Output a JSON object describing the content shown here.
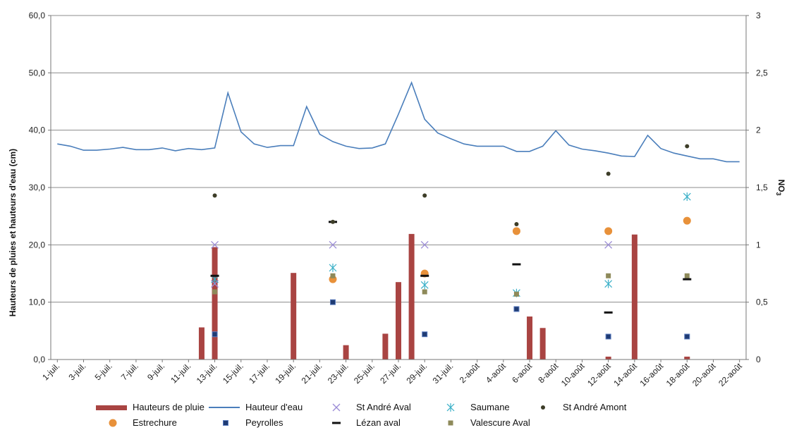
{
  "chart_data": {
    "type": "bar+line+scatter",
    "x_dates": [
      "1-juil.",
      "2-juil.",
      "3-juil.",
      "4-juil.",
      "5-juil.",
      "6-juil.",
      "7-juil.",
      "8-juil.",
      "9-juil.",
      "10-juil.",
      "11-juil.",
      "12-juil.",
      "13-juil.",
      "14-juil.",
      "15-juil.",
      "16-juil.",
      "17-juil.",
      "18-juil.",
      "19-juil.",
      "20-juil.",
      "21-juil.",
      "22-juil.",
      "23-juil.",
      "24-juil.",
      "25-juil.",
      "26-juil.",
      "27-juil.",
      "28-juil.",
      "29-juil.",
      "30-juil.",
      "31-juil.",
      "1-août",
      "2-août",
      "3-août",
      "4-août",
      "5-août",
      "6-août",
      "7-août",
      "8-août",
      "9-août",
      "10-août",
      "11-août",
      "12-août",
      "13-août",
      "14-août",
      "15-août",
      "16-août",
      "17-août",
      "18-août",
      "19-août",
      "20-août",
      "21-août",
      "22-août"
    ],
    "x_tick_labels": [
      "1-juil.",
      "3-juil.",
      "5-juil.",
      "7-juil.",
      "9-juil.",
      "11-juil.",
      "13-juil.",
      "15-juil.",
      "17-juil.",
      "19-juil.",
      "21-juil.",
      "23-juil.",
      "25-juil.",
      "27-juil.",
      "29-juil.",
      "31-juil.",
      "2-août",
      "4-août",
      "6-août",
      "8-août",
      "10-août",
      "12-août",
      "14-août",
      "16-août",
      "18-août",
      "20-août",
      "22-août"
    ],
    "y_left": {
      "label": "Hauteurs de pluies et hauteurs d'eau (cm)",
      "min": 0,
      "max": 60,
      "ticks": [
        "0,0",
        "10,0",
        "20,0",
        "30,0",
        "40,0",
        "50,0",
        "60,0"
      ]
    },
    "y_right": {
      "label_main": "NO",
      "label_sub": "3",
      "min": 0,
      "max": 3,
      "ticks": [
        "0",
        "0,5",
        "1",
        "1,5",
        "2",
        "2,5",
        "3"
      ]
    },
    "grid": "horizontal",
    "legend_position": "bottom",
    "colors": {
      "rain": "#a94442",
      "water": "#4a7ebb",
      "st_andre_aval": "#9b8cd6",
      "saumane": "#3ab0c8",
      "st_andre_amont": "#3d3d28",
      "estrechure": "#e8913a",
      "peyrolles": "#1f3b73",
      "lezan_aval": "#111111",
      "valescure_aval": "#8e8a5a"
    },
    "series": [
      {
        "key": "rain",
        "name": "Hauteurs de pluie",
        "kind": "bar",
        "axis": "left",
        "points": [
          [
            "12-juil.",
            5.6
          ],
          [
            "13-juil.",
            19.6
          ],
          [
            "19-juil.",
            15.1
          ],
          [
            "23-juil.",
            2.5
          ],
          [
            "26-juil.",
            4.5
          ],
          [
            "27-juil.",
            13.5
          ],
          [
            "28-juil.",
            21.9
          ],
          [
            "6-août",
            7.5
          ],
          [
            "7-août",
            5.5
          ],
          [
            "12-août",
            0.5
          ],
          [
            "14-août",
            21.8
          ],
          [
            "18-août",
            0.5
          ]
        ]
      },
      {
        "key": "water",
        "name": "Hauteur d'eau",
        "kind": "line",
        "axis": "left",
        "values": [
          37.6,
          37.2,
          36.5,
          36.5,
          36.7,
          37.0,
          36.6,
          36.6,
          36.9,
          36.4,
          36.8,
          36.6,
          36.9,
          46.5,
          39.7,
          37.6,
          37.0,
          37.3,
          37.3,
          44.1,
          39.3,
          38.0,
          37.2,
          36.8,
          36.9,
          37.6,
          42.8,
          48.3,
          41.9,
          39.5,
          38.5,
          37.6,
          37.2,
          37.2,
          37.2,
          36.3,
          36.3,
          37.2,
          39.9,
          37.4,
          36.7,
          36.4,
          36.0,
          35.5,
          35.4,
          39.1,
          36.8,
          36.0,
          35.5,
          35.0,
          35.0,
          34.5,
          34.5
        ]
      },
      {
        "key": "st_andre_aval",
        "name": "St André Aval",
        "kind": "marker",
        "marker": "x",
        "axis": "right",
        "points": [
          [
            "13-juil.",
            1.0
          ],
          [
            "13-juil.",
            0.66
          ],
          [
            "22-juil.",
            1.0
          ],
          [
            "29-juil.",
            1.0
          ],
          [
            "12-août",
            1.0
          ]
        ]
      },
      {
        "key": "saumane",
        "name": "Saumane",
        "kind": "marker",
        "marker": "star",
        "axis": "right",
        "points": [
          [
            "13-juil.",
            0.7
          ],
          [
            "22-juil.",
            0.8
          ],
          [
            "29-juil.",
            0.65
          ],
          [
            "5-août",
            0.58
          ],
          [
            "12-août",
            0.66
          ],
          [
            "18-août",
            1.42
          ]
        ]
      },
      {
        "key": "st_andre_amont",
        "name": "St André Amont",
        "kind": "marker",
        "marker": "dot",
        "axis": "right",
        "points": [
          [
            "13-juil.",
            1.43
          ],
          [
            "22-juil.",
            1.2
          ],
          [
            "29-juil.",
            1.43
          ],
          [
            "5-août",
            1.18
          ],
          [
            "12-août",
            1.62
          ],
          [
            "18-août",
            1.86
          ]
        ]
      },
      {
        "key": "estrechure",
        "name": "Estrechure",
        "kind": "marker",
        "marker": "circle",
        "axis": "right",
        "points": [
          [
            "22-juil.",
            0.7
          ],
          [
            "29-juil.",
            0.75
          ],
          [
            "5-août",
            1.12
          ],
          [
            "12-août",
            1.12
          ],
          [
            "18-août",
            1.21
          ]
        ]
      },
      {
        "key": "peyrolles",
        "name": "Peyrolles",
        "kind": "marker",
        "marker": "square",
        "axis": "right",
        "points": [
          [
            "13-juil.",
            0.22
          ],
          [
            "22-juil.",
            0.5
          ],
          [
            "29-juil.",
            0.22
          ],
          [
            "5-août",
            0.44
          ],
          [
            "12-août",
            0.2
          ],
          [
            "18-août",
            0.2
          ]
        ]
      },
      {
        "key": "lezan_aval",
        "name": "Lézan aval",
        "kind": "marker",
        "marker": "dash",
        "axis": "right",
        "points": [
          [
            "13-juil.",
            0.73
          ],
          [
            "22-juil.",
            1.2
          ],
          [
            "29-juil.",
            0.73
          ],
          [
            "5-août",
            0.83
          ],
          [
            "12-août",
            0.41
          ],
          [
            "18-août",
            0.7
          ]
        ]
      },
      {
        "key": "valescure_aval",
        "name": "Valescure Aval",
        "kind": "marker",
        "marker": "square-olive",
        "axis": "right",
        "points": [
          [
            "13-juil.",
            0.59
          ],
          [
            "22-juil.",
            0.73
          ],
          [
            "29-juil.",
            0.59
          ],
          [
            "5-août",
            0.57
          ],
          [
            "12-août",
            0.73
          ],
          [
            "18-août",
            0.73
          ]
        ]
      }
    ]
  }
}
